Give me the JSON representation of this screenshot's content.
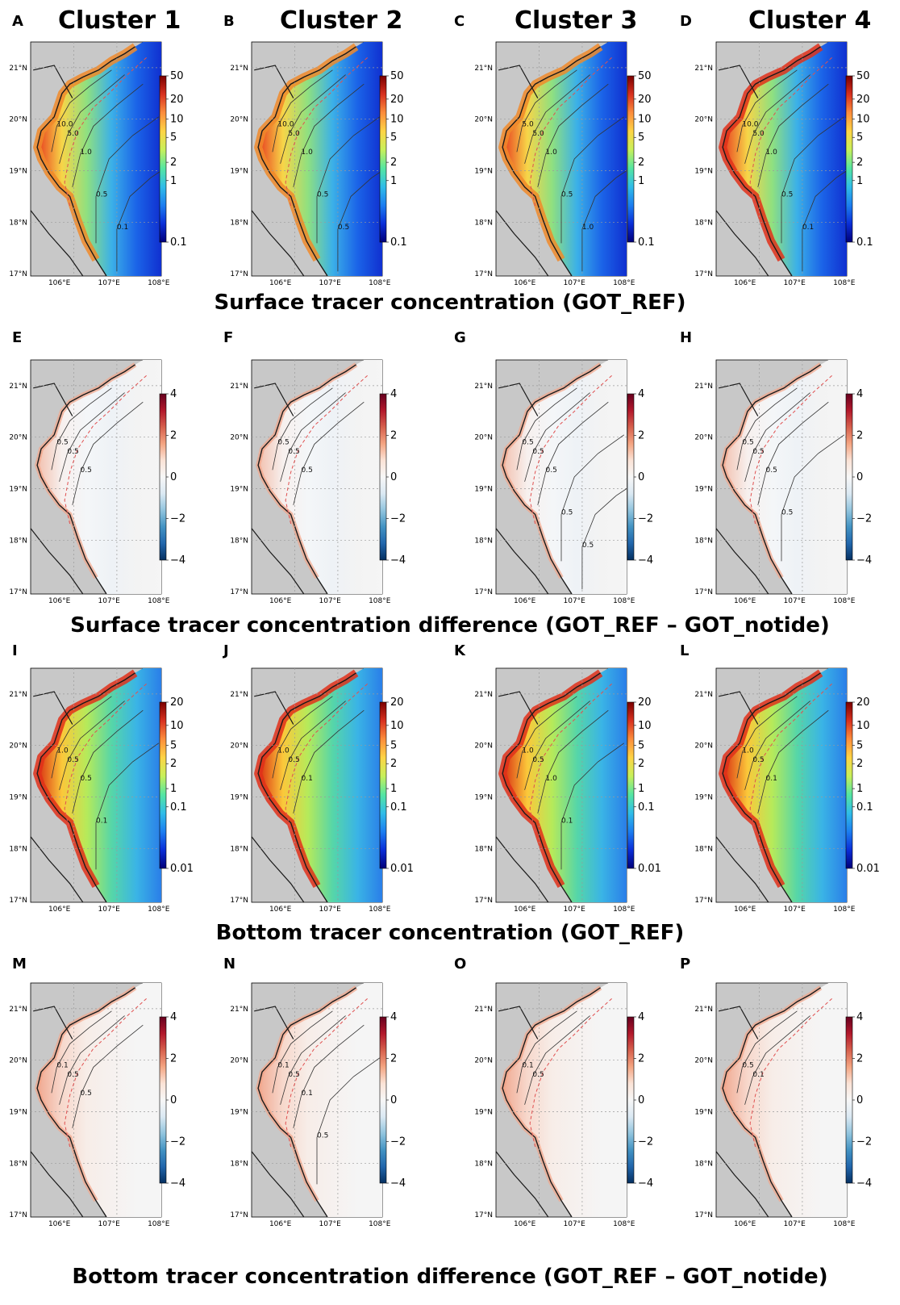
{
  "titles": {
    "clusters": [
      "Cluster 1",
      "Cluster 2",
      "Cluster 3",
      "Cluster 4"
    ],
    "rows": [
      "Surface tracer concentration (GOT_REF)",
      "Surface tracer concentration difference (GOT_REF – GOT_notide)",
      "Bottom tracer concentration (GOT_REF)",
      "Bottom tracer concentration  difference (GOT_REF – GOT_notide)"
    ]
  },
  "axes": {
    "lat_ticks": [
      "21°N",
      "20°N",
      "19°N",
      "18°N",
      "17°N"
    ],
    "lon_ticks": [
      "106°E",
      "107°E",
      "108°E"
    ]
  },
  "colorbars": {
    "surface": [
      "50",
      "20",
      "10",
      "5",
      "2",
      "1",
      "0.1"
    ],
    "surface_diff": [
      "4",
      "2",
      "0",
      "−2",
      "−4"
    ],
    "bottom": [
      "20",
      "10",
      "5",
      "2",
      "1",
      "0.1",
      "0.01"
    ],
    "bottom_diff": [
      "4",
      "2",
      "0",
      "−2",
      "−4"
    ]
  },
  "panels": [
    {
      "letter": "A",
      "contours": [
        "10.0",
        "5.0",
        "1.0",
        "0.5",
        "0.1"
      ]
    },
    {
      "letter": "B",
      "contours": [
        "10.0",
        "5.0",
        "1.0",
        "0.5",
        "0.5"
      ]
    },
    {
      "letter": "C",
      "contours": [
        "5.0",
        "5.0",
        "1.0",
        "0.5",
        "1.0"
      ]
    },
    {
      "letter": "D",
      "contours": [
        "10.0",
        "5.0",
        "1.0",
        "0.5",
        "0.1"
      ]
    },
    {
      "letter": "E",
      "contours": [
        "0.5",
        "0.5",
        "0.5"
      ]
    },
    {
      "letter": "F",
      "contours": [
        "0.5",
        "0.5",
        "0.5"
      ]
    },
    {
      "letter": "G",
      "contours": [
        "0.5",
        "0.5",
        "0.5",
        "0.5",
        "0.5"
      ]
    },
    {
      "letter": "H",
      "contours": [
        "0.5",
        "0.5",
        "0.5",
        "0.5"
      ]
    },
    {
      "letter": "I",
      "contours": [
        "1.0",
        "0.5",
        "0.5",
        "0.1"
      ]
    },
    {
      "letter": "J",
      "contours": [
        "1.0",
        "0.5",
        "0.1"
      ]
    },
    {
      "letter": "K",
      "contours": [
        "1.0",
        "0.5",
        "1.0",
        "0.1"
      ]
    },
    {
      "letter": "L",
      "contours": [
        "1.0",
        "0.5",
        "0.1"
      ]
    },
    {
      "letter": "M",
      "contours": [
        "0.1",
        "0.5",
        "0.5"
      ]
    },
    {
      "letter": "N",
      "contours": [
        "0.1",
        "0.5",
        "0.1",
        "0.5"
      ]
    },
    {
      "letter": "O",
      "contours": [
        "0.1",
        "0.5"
      ]
    },
    {
      "letter": "P",
      "contours": [
        "0.5",
        "0.1"
      ]
    }
  ],
  "colors": {
    "land": "#c8c8c8",
    "coast": "#1a1a1a",
    "isobath": "#e05050",
    "grid": "#9a9a9a"
  }
}
